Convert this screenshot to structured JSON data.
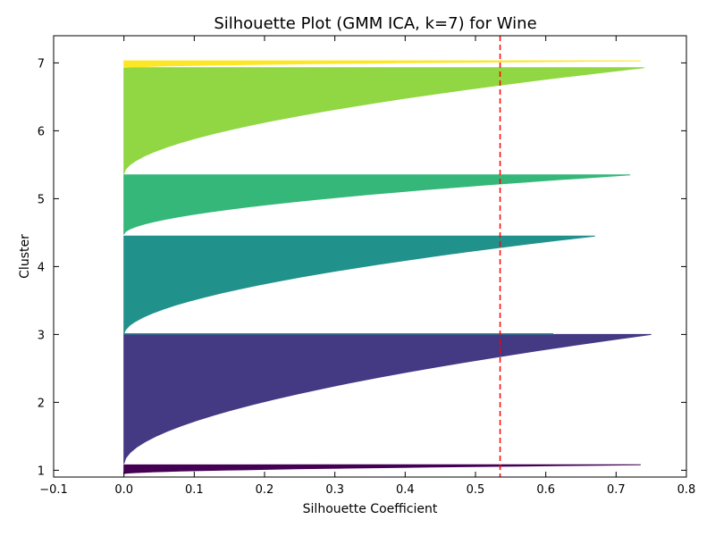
{
  "chart_data": {
    "type": "bar",
    "orientation": "horizontal-silhouette",
    "title": "Silhouette Plot (GMM ICA, k=7) for Wine",
    "xlabel": "Silhouette Coefficient",
    "ylabel": "Cluster",
    "xlim": [
      -0.1,
      0.8
    ],
    "xticks": [
      -0.1,
      0.0,
      0.1,
      0.2,
      0.3,
      0.4,
      0.5,
      0.6,
      0.7,
      0.8
    ],
    "xtick_labels": [
      "−0.1",
      "0.0",
      "0.1",
      "0.2",
      "0.3",
      "0.4",
      "0.5",
      "0.6",
      "0.7",
      "0.8"
    ],
    "ylim": [
      0.9,
      7.4
    ],
    "yticks": [
      1,
      2,
      3,
      4,
      5,
      6,
      7
    ],
    "yticks_labels": [
      "1",
      "2",
      "3",
      "4",
      "5",
      "6",
      "7"
    ],
    "average_silhouette": 0.535,
    "average_line_color": "#ff0000",
    "clusters": [
      {
        "label": "1",
        "y_start": 0.95,
        "y_end": 1.08,
        "s_min": 0.0,
        "s_max": 0.735,
        "color": "#440154"
      },
      {
        "label": "2",
        "y_start": 1.1,
        "y_end": 3.0,
        "s_min": 0.0,
        "s_max": 0.75,
        "color": "#443983"
      },
      {
        "label": "3",
        "y_start": 3.0,
        "y_end": 3.01,
        "s_min": 0.61,
        "s_max": 0.61,
        "color": "#31688e"
      },
      {
        "label": "4",
        "y_start": 3.01,
        "y_end": 4.45,
        "s_min": 0.0,
        "s_max": 0.67,
        "color": "#21918c"
      },
      {
        "label": "5",
        "y_start": 4.48,
        "y_end": 5.35,
        "s_min": 0.0,
        "s_max": 0.72,
        "color": "#35b779"
      },
      {
        "label": "6",
        "y_start": 5.37,
        "y_end": 6.93,
        "s_min": 0.0,
        "s_max": 0.74,
        "color": "#90d743"
      },
      {
        "label": "7",
        "y_start": 6.93,
        "y_end": 7.03,
        "s_min": 0.0,
        "s_max": 0.735,
        "color": "#fde725"
      }
    ]
  }
}
